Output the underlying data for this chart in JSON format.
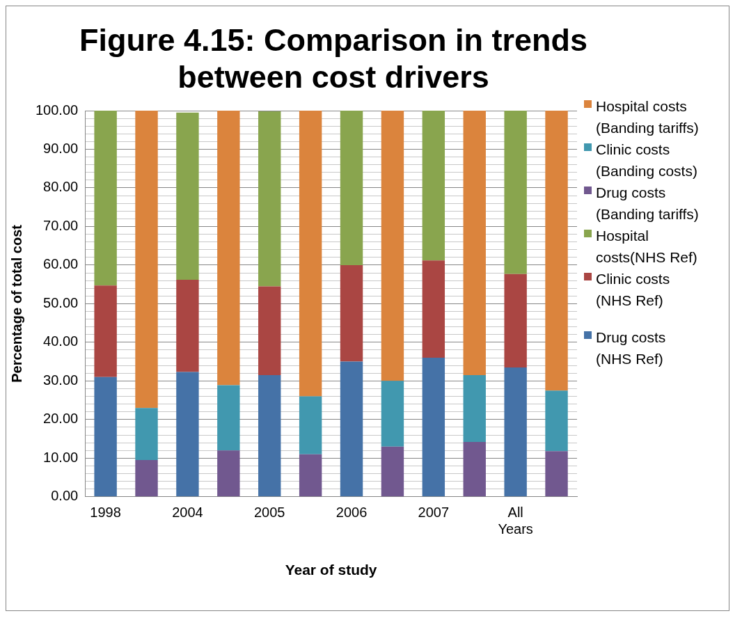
{
  "chart_data": {
    "type": "bar",
    "title": "Figure 4.15: Comparison in trends between cost drivers",
    "xlabel": "Year of study",
    "ylabel": "Percentage of total cost",
    "categories": [
      "1998",
      null,
      "2004",
      null,
      "2005",
      null,
      "2006",
      null,
      "2007",
      null,
      "All Years",
      null
    ],
    "stacked": true,
    "legend": "right",
    "grid": "y",
    "ylim": [
      0,
      100
    ],
    "yticks": [
      {
        "value": 0,
        "label": "0.00"
      },
      {
        "value": 10,
        "label": "10.00"
      },
      {
        "value": 20,
        "label": "20.00"
      },
      {
        "value": 30,
        "label": "30.00"
      },
      {
        "value": 40,
        "label": "40.00"
      },
      {
        "value": 50,
        "label": "50.00"
      },
      {
        "value": 60,
        "label": "60.00"
      },
      {
        "value": 70,
        "label": "70.00"
      },
      {
        "value": 80,
        "label": "80.00"
      },
      {
        "value": 90,
        "label": "90.00"
      },
      {
        "value": 100,
        "label": "100.00"
      }
    ],
    "series": [
      {
        "name": "Drug costs (NHS Ref)",
        "color": "#4572a7",
        "values": [
          31,
          null,
          32.3,
          null,
          31.5,
          null,
          35,
          null,
          36,
          null,
          33.5,
          null
        ]
      },
      {
        "name": "Clinic costs (NHS Ref)",
        "color": "#aa4643",
        "values": [
          23.7,
          null,
          23.9,
          null,
          23,
          null,
          25,
          null,
          25.2,
          null,
          24.2,
          null
        ]
      },
      {
        "name": "Hospital costs(NHS Ref)",
        "color": "#89a54e",
        "values": [
          45.3,
          null,
          43.3,
          null,
          45.3,
          null,
          40,
          null,
          38.8,
          null,
          42.3,
          null
        ]
      },
      {
        "name": "Drug costs (Banding tariffs)",
        "color": "#71588f",
        "values": [
          null,
          9.5,
          null,
          12,
          null,
          11,
          null,
          13,
          null,
          14.2,
          null,
          11.8
        ]
      },
      {
        "name": "Clinic costs (Banding costs)",
        "color": "#4198af",
        "values": [
          null,
          13.5,
          null,
          16.9,
          null,
          15,
          null,
          17,
          null,
          17.3,
          null,
          15.7
        ]
      },
      {
        "name": "Hospital costs (Banding tariffs)",
        "color": "#db843d",
        "values": [
          null,
          77,
          null,
          71.1,
          null,
          74,
          null,
          70,
          null,
          68.5,
          null,
          72.5
        ]
      }
    ]
  }
}
